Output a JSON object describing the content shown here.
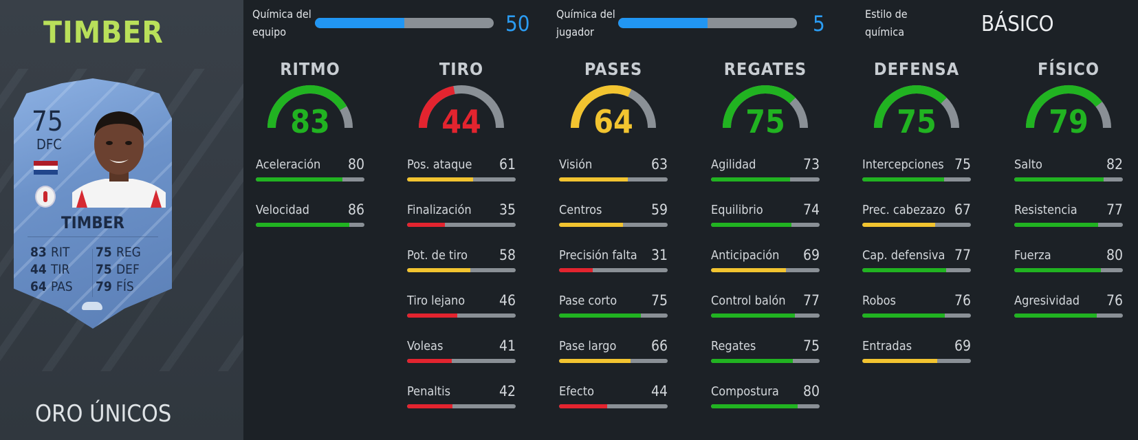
{
  "player": {
    "name": "TIMBER",
    "rarity": "ORO ÚNICOS",
    "card": {
      "rating": "75",
      "position": "DFC",
      "name": "TIMBER",
      "stats": [
        {
          "value": "83",
          "label": "RIT"
        },
        {
          "value": "75",
          "label": "REG"
        },
        {
          "value": "44",
          "label": "TIR"
        },
        {
          "value": "75",
          "label": "DEF"
        },
        {
          "value": "64",
          "label": "PAS"
        },
        {
          "value": "79",
          "label": "FÍS"
        }
      ],
      "flag_colors": [
        "#ae1c28",
        "#ffffff",
        "#21468b"
      ],
      "club_icon": "ajax-crest-icon",
      "boot_icon": "boot-icon"
    }
  },
  "chemistry": {
    "team": {
      "label_line1": "Química del",
      "label_line2": "equipo",
      "value": "50",
      "fraction": 0.5
    },
    "player": {
      "label_line1": "Química del",
      "label_line2": "jugador",
      "value": "5",
      "fraction": 0.5
    },
    "style": {
      "label_line1": "Estilo de",
      "label_line2": "química",
      "value": "BÁSICO"
    }
  },
  "colors": {
    "green": "#21b321",
    "red": "#e3242f",
    "yellow": "#f2c430",
    "track": "#8a9096",
    "accent_blue": "#2196f3",
    "name_green": "#b9e05a"
  },
  "categories": [
    {
      "title": "RITMO",
      "value": 83,
      "color": "green",
      "attrs": [
        {
          "name": "Aceleración",
          "value": 80,
          "color": "green"
        },
        {
          "name": "Velocidad",
          "value": 86,
          "color": "green"
        }
      ]
    },
    {
      "title": "TIRO",
      "value": 44,
      "color": "red",
      "attrs": [
        {
          "name": "Pos. ataque",
          "value": 61,
          "color": "yellow"
        },
        {
          "name": "Finalización",
          "value": 35,
          "color": "red"
        },
        {
          "name": "Pot. de tiro",
          "value": 58,
          "color": "yellow"
        },
        {
          "name": "Tiro lejano",
          "value": 46,
          "color": "red"
        },
        {
          "name": "Voleas",
          "value": 41,
          "color": "red"
        },
        {
          "name": "Penaltis",
          "value": 42,
          "color": "red"
        }
      ]
    },
    {
      "title": "PASES",
      "value": 64,
      "color": "yellow",
      "attrs": [
        {
          "name": "Visión",
          "value": 63,
          "color": "yellow"
        },
        {
          "name": "Centros",
          "value": 59,
          "color": "yellow"
        },
        {
          "name": "Precisión falta",
          "value": 31,
          "color": "red"
        },
        {
          "name": "Pase corto",
          "value": 75,
          "color": "green"
        },
        {
          "name": "Pase largo",
          "value": 66,
          "color": "yellow"
        },
        {
          "name": "Efecto",
          "value": 44,
          "color": "red"
        }
      ]
    },
    {
      "title": "REGATES",
      "value": 75,
      "color": "green",
      "attrs": [
        {
          "name": "Agilidad",
          "value": 73,
          "color": "green"
        },
        {
          "name": "Equilibrio",
          "value": 74,
          "color": "green"
        },
        {
          "name": "Anticipación",
          "value": 69,
          "color": "yellow"
        },
        {
          "name": "Control balón",
          "value": 77,
          "color": "green"
        },
        {
          "name": "Regates",
          "value": 75,
          "color": "green"
        },
        {
          "name": "Compostura",
          "value": 80,
          "color": "green"
        }
      ]
    },
    {
      "title": "DEFENSA",
      "value": 75,
      "color": "green",
      "attrs": [
        {
          "name": "Intercepciones",
          "value": 75,
          "color": "green"
        },
        {
          "name": "Prec. cabezazo",
          "value": 67,
          "color": "yellow"
        },
        {
          "name": "Cap. defensiva",
          "value": 77,
          "color": "green"
        },
        {
          "name": "Robos",
          "value": 76,
          "color": "green"
        },
        {
          "name": "Entradas",
          "value": 69,
          "color": "yellow"
        }
      ]
    },
    {
      "title": "FÍSICO",
      "value": 79,
      "color": "green",
      "attrs": [
        {
          "name": "Salto",
          "value": 82,
          "color": "green"
        },
        {
          "name": "Resistencia",
          "value": 77,
          "color": "green"
        },
        {
          "name": "Fuerza",
          "value": 80,
          "color": "green"
        },
        {
          "name": "Agresividad",
          "value": 76,
          "color": "green"
        }
      ]
    }
  ]
}
